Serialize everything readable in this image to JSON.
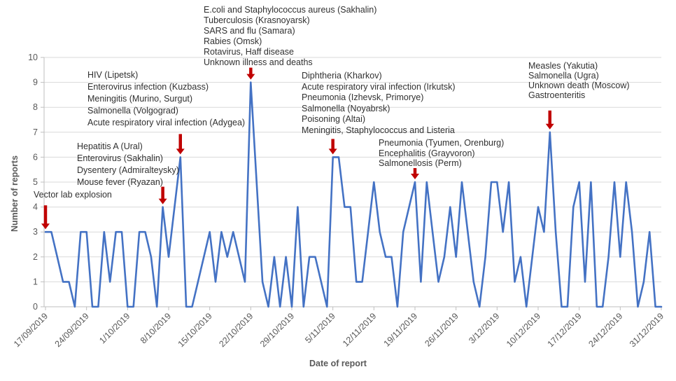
{
  "chart_data": {
    "type": "line",
    "title": "",
    "xlabel": "Date of report",
    "ylabel": "Number of reports",
    "ylim": [
      0,
      10
    ],
    "y_ticks": [
      0,
      1,
      2,
      3,
      4,
      5,
      6,
      7,
      8,
      9,
      10
    ],
    "grid": "horizontal",
    "legend": "none",
    "x_start_date": "17/09/2019",
    "x_end_date": "31/12/2019",
    "x_tick_interval_days": 7,
    "x_tick_labels": [
      "17/09/2019",
      "24/09/2019",
      "1/10/2019",
      "8/10/2019",
      "15/10/2019",
      "22/10/2019",
      "29/10/2019",
      "5/11/2019",
      "12/11/2019",
      "19/11/2019",
      "26/11/2019",
      "3/12/2019",
      "10/12/2019",
      "17/12/2019",
      "24/12/2019",
      "31/12/2019"
    ],
    "series": [
      {
        "name": "Number of reports",
        "values": [
          3,
          3,
          2,
          1,
          1,
          0,
          3,
          3,
          0,
          0,
          3,
          1,
          3,
          3,
          0,
          0,
          3,
          3,
          2,
          0,
          4,
          2,
          4,
          6,
          0,
          0,
          1,
          2,
          3,
          1,
          3,
          2,
          3,
          2,
          1,
          9,
          5,
          1,
          0,
          2,
          0,
          2,
          0,
          4,
          0,
          2,
          2,
          1,
          0,
          6,
          6,
          4,
          4,
          1,
          1,
          3,
          5,
          3,
          2,
          2,
          0,
          3,
          4,
          5,
          1,
          5,
          3,
          1,
          2,
          4,
          2,
          5,
          3,
          1,
          0,
          2,
          5,
          5,
          3,
          5,
          1,
          2,
          0,
          2,
          4,
          3,
          7,
          3,
          0,
          0,
          4,
          5,
          1,
          5,
          0,
          0,
          2,
          5,
          2,
          5,
          3,
          0,
          1,
          3,
          0,
          0
        ]
      }
    ],
    "annotations": [
      {
        "label_lines": [
          "Vector lab explosion"
        ],
        "day_index": 0,
        "value": 3
      },
      {
        "label_lines": [
          "Hepatitis A (Ural)",
          "Enterovirus (Sakhalin)",
          "Dysentery (Admiralteysky)",
          "Mouse fever (Ryazan)"
        ],
        "day_index": 20,
        "value": 4
      },
      {
        "label_lines": [
          "HIV (Lipetsk)",
          "Enterovirus infection (Kuzbass)",
          "Meningitis (Murino, Surgut)",
          "Salmonella (Volgograd)",
          "Acute respiratory viral infection (Adygea)"
        ],
        "day_index": 23,
        "value": 6
      },
      {
        "label_lines": [
          "E.coli and Staphylococcus aureus (Sakhalin)",
          "Tuberculosis (Krasnoyarsk)",
          "SARS and flu (Samara)",
          "Rabies (Omsk)",
          "Rotavirus, Haff disease",
          "Unknown illness and deaths"
        ],
        "day_index": 35,
        "value": 9
      },
      {
        "label_lines": [
          "Diphtheria (Kharkov)",
          "Acute respiratory viral infection (Irkutsk)",
          "Pneumonia (Izhevsk, Primorye)",
          "Salmonella (Noyabrsk)",
          "Poisoning (Altai)",
          "Meningitis, Staphylococcus and Listeria"
        ],
        "day_index": 49,
        "value": 6
      },
      {
        "label_lines": [
          "Pneumonia (Tyumen, Orenburg)",
          "Encephalitis (Grayvoron)",
          "Salmonellosis (Perm)"
        ],
        "day_index": 63,
        "value": 5
      },
      {
        "label_lines": [
          "Measles (Yakutia)",
          "Salmonella (Ugra)",
          "Unknown death (Moscow)",
          "Gastroenteritis"
        ],
        "day_index": 86,
        "value": 7
      }
    ],
    "colors": {
      "line": "#4472C4",
      "arrow": "#C00000",
      "grid": "#D9D9D9",
      "axis": "#BFBFBF",
      "tick_text": "#595959",
      "annotation_text": "#303030",
      "background": "#FFFFFF"
    }
  }
}
